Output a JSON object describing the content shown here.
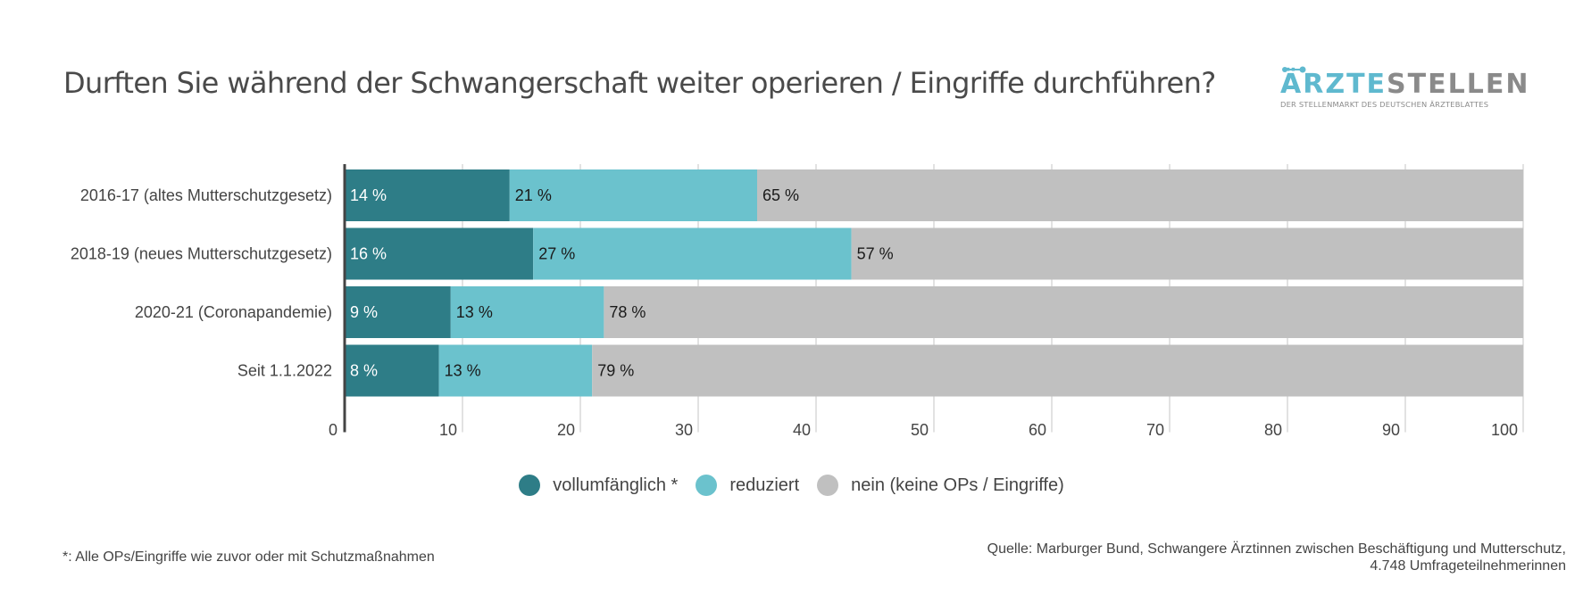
{
  "title": "Durften Sie während der Schwangerschaft weiter operieren / Eingriffe durchführen?",
  "logo": {
    "brand_part1": "ÄRZTE",
    "brand_part2": "STELLEN",
    "tagline": "DER STELLENMARKT DES DEUTSCHEN ÄRZTEBLATTES",
    "color_primary": "#5fb9cf",
    "color_secondary": "#8a8a8a"
  },
  "chart_data": {
    "type": "bar",
    "orientation": "horizontal",
    "stacked": true,
    "title": "Durften Sie während der Schwangerschaft weiter operieren / Eingriffe durchführen?",
    "xlabel": "",
    "ylabel": "",
    "xlim": [
      0,
      100
    ],
    "xticks": [
      0,
      10,
      20,
      30,
      40,
      50,
      60,
      70,
      80,
      90,
      100
    ],
    "grid": "vertical",
    "legend_position": "bottom-center",
    "value_suffix": " %",
    "categories": [
      "2016-17 (altes Mutterschutzgesetz)",
      "2018-19 (neues Mutterschutzgesetz)",
      "2020-21 (Coronapandemie)",
      "Seit 1.1.2022"
    ],
    "series": [
      {
        "name": "vollumfänglich *",
        "color": "#2e7d87",
        "label_color": "#ffffff",
        "values": [
          14,
          16,
          9,
          8
        ]
      },
      {
        "name": "reduziert",
        "color": "#6bc2cd",
        "label_color": "#1a1a1a",
        "values": [
          21,
          27,
          13,
          13
        ]
      },
      {
        "name": "nein (keine OPs / Eingriffe)",
        "color": "#c0c0c0",
        "label_color": "#1a1a1a",
        "values": [
          65,
          57,
          78,
          79
        ]
      }
    ]
  },
  "footnote": "*: Alle OPs/Eingriffe wie zuvor oder mit Schutzmaßnahmen",
  "source": {
    "line1": "Quelle: Marburger Bund, Schwangere Ärztinnen zwischen Beschäftigung und Mutterschutz,",
    "line2": "4.748 Umfrageteilnehmerinnen"
  }
}
